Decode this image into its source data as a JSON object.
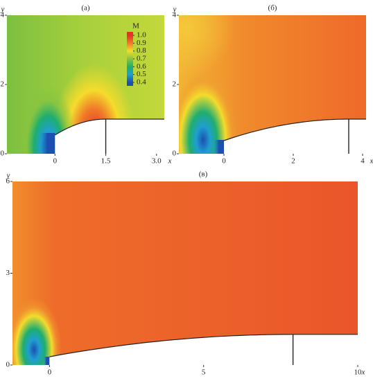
{
  "chart_data": [
    {
      "type": "heatmap",
      "title": "(а)",
      "x_label": "x",
      "y_label": "y",
      "xlim": [
        -1.42,
        3.23
      ],
      "ylim": [
        0,
        4
      ],
      "xticks": [
        0,
        1.5,
        {
          "value": 3,
          "label": "3.0"
        }
      ],
      "yticks": [
        0,
        2,
        4
      ],
      "colorbar": {
        "title": "M",
        "ticks": [
          {
            "value": 1,
            "label": "1.0"
          },
          0.9,
          0.8,
          0.7,
          0.6,
          0.5,
          0.4
        ],
        "colors": [
          "#e2322a",
          "#f07a28",
          "#f4dc2c",
          "#86c440",
          "#1fae6e",
          "#1f9fd0",
          "#1c4fb0"
        ]
      }
    },
    {
      "type": "heatmap",
      "title": "(б)",
      "x_label": "x",
      "y_label": "y",
      "xlim": [
        -1.3,
        4.1
      ],
      "ylim": [
        0,
        4
      ],
      "xticks": [
        0,
        2,
        4
      ],
      "yticks": [
        0,
        2,
        4
      ]
    },
    {
      "type": "heatmap",
      "title": "(в)",
      "x_label": "x",
      "y_label": "y",
      "xlim": [
        -1.2,
        10
      ],
      "ylim": [
        0,
        6
      ],
      "xticks": [
        0,
        5,
        10
      ],
      "yticks": [
        0,
        3,
        6
      ]
    }
  ]
}
